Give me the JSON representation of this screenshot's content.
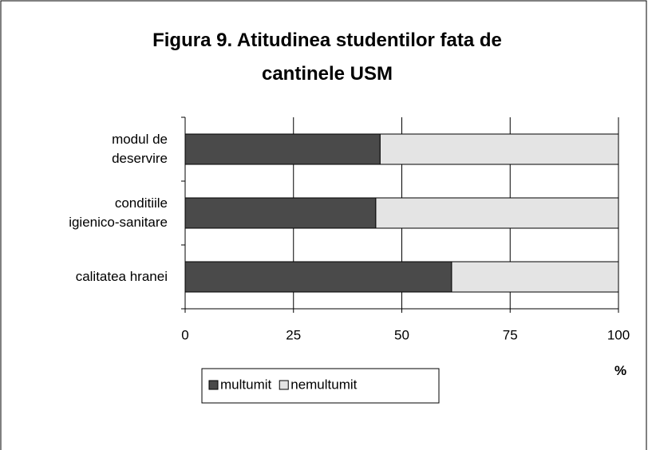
{
  "chart_data": {
    "type": "bar",
    "orientation": "horizontal",
    "stacked": true,
    "title": "Figura 9. Atitudinea studentilor fata de cantinele USM",
    "x_label": "%",
    "categories": [
      "modul de\ndeservire",
      "conditiile\nigienico-sanitare",
      "calitatea hranei"
    ],
    "series": [
      {
        "name": "multumit",
        "color": "#4a4a4a",
        "values": [
          45,
          44,
          61.5
        ]
      },
      {
        "name": "nemultumit",
        "color": "#e4e4e4",
        "values": [
          55,
          56,
          38.5
        ]
      }
    ],
    "xlim": [
      0,
      100
    ],
    "xticks": [
      0,
      25,
      50,
      75,
      100
    ],
    "grid": true
  }
}
